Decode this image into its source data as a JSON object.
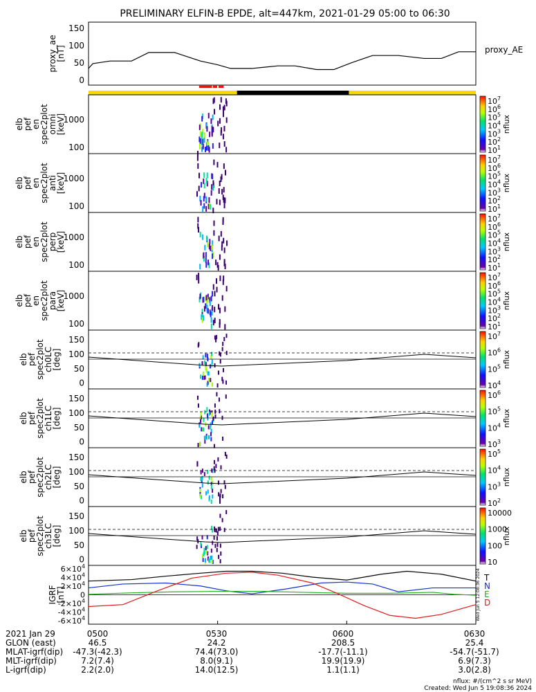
{
  "title": "PRELIMINARY ELFIN-B EPDE, alt=447km, 2021-01-29 05:00 to 06:30",
  "colors": {
    "sci_zone": "#e01818",
    "orbit_sun": "#f5d800",
    "orbit_eclipse": "#000000",
    "T": "#000000",
    "N": "#1030d0",
    "E": "#20b020",
    "D": "#e01818"
  },
  "chart_data": [
    {
      "type": "line",
      "panel": "proxy_ae",
      "ylabel": [
        "proxy_ae",
        "[nT]"
      ],
      "yticks": [
        "150",
        "100",
        "50",
        "0"
      ],
      "ylim": [
        0,
        150
      ],
      "legend": "proxy_AE",
      "x_min": [
        0,
        1,
        5,
        10,
        14,
        20,
        26,
        30,
        33,
        38,
        44,
        48,
        53,
        57,
        61,
        66,
        72,
        78,
        82,
        86,
        90
      ],
      "values": [
        35,
        48,
        55,
        55,
        78,
        78,
        55,
        45,
        35,
        35,
        42,
        42,
        32,
        32,
        50,
        70,
        70,
        62,
        62,
        80,
        80
      ]
    },
    {
      "type": "bar",
      "panel": "orbit_bar",
      "segments": [
        {
          "from": 0,
          "to": 34.5,
          "state": "sun"
        },
        {
          "from": 34.5,
          "to": 60.5,
          "state": "eclipse"
        },
        {
          "from": 60.5,
          "to": 90,
          "state": "sun"
        }
      ],
      "science_zones": [
        [
          25.7,
          28.7
        ],
        [
          28.9,
          29.9
        ],
        [
          30.2,
          31.4
        ]
      ]
    },
    {
      "type": "heatmap",
      "panel": "omni",
      "ylabel": [
        "elb",
        "pef",
        "en",
        "spec2plot",
        "omni",
        "[keV]"
      ],
      "yticks": [
        "1000",
        "100"
      ],
      "zlabel": "nflux",
      "zticks": [
        "10^7",
        "10^6",
        "10^5",
        "10^4",
        "10^3",
        "10^2",
        "10^1"
      ]
    },
    {
      "type": "heatmap",
      "panel": "anti",
      "ylabel": [
        "elb",
        "pef",
        "en",
        "spec2plot",
        "anti",
        "[keV]"
      ],
      "yticks": [
        "1000",
        "100"
      ],
      "zlabel": "nflux",
      "zticks": [
        "10^7",
        "10^6",
        "10^5",
        "10^4",
        "10^3",
        "10^2",
        "10^1"
      ]
    },
    {
      "type": "heatmap",
      "panel": "perp",
      "ylabel": [
        "elb",
        "pef",
        "en",
        "spec2plot",
        "perp",
        "[keV]"
      ],
      "yticks": [
        "1000",
        "100"
      ],
      "zlabel": "nflux",
      "zticks": [
        "10^7",
        "10^6",
        "10^5",
        "10^4",
        "10^3",
        "10^2",
        "10^1"
      ]
    },
    {
      "type": "heatmap",
      "panel": "para",
      "ylabel": [
        "elb",
        "pef",
        "en",
        "spec2plot",
        "para",
        "[keV]"
      ],
      "yticks": [
        "1000",
        "100"
      ],
      "zlabel": "nflux",
      "zticks": [
        "10^7",
        "10^6",
        "10^5",
        "10^4",
        "10^3",
        "10^2",
        "10^1"
      ]
    },
    {
      "type": "heatmap",
      "panel": "ch0LC",
      "ylabel": [
        "elb",
        "pef",
        "spec2plot",
        "ch0LC",
        "[deg]"
      ],
      "yticks": [
        "150",
        "100",
        "50",
        "0"
      ],
      "ylim": [
        0,
        180
      ],
      "zlabel": "nflux",
      "zticks": [
        "10^7",
        "10^6",
        "10^5",
        "10^4"
      ]
    },
    {
      "type": "heatmap",
      "panel": "ch1LC",
      "ylabel": [
        "elb",
        "pef",
        "spec2plot",
        "ch1LC",
        "[deg]"
      ],
      "yticks": [
        "150",
        "100",
        "50",
        "0"
      ],
      "ylim": [
        0,
        180
      ],
      "zlabel": "nflux",
      "zticks": [
        "10^6",
        "10^5",
        "10^4",
        "10^3"
      ]
    },
    {
      "type": "heatmap",
      "panel": "ch2LC",
      "ylabel": [
        "elb",
        "pef",
        "spec2plot",
        "ch2LC",
        "[deg]"
      ],
      "yticks": [
        "150",
        "100",
        "50",
        "0"
      ],
      "ylim": [
        0,
        180
      ],
      "zlabel": "nflux",
      "zticks": [
        "10^5",
        "10^4",
        "10^3",
        "10^2"
      ]
    },
    {
      "type": "heatmap",
      "panel": "ch3LC",
      "ylabel": [
        "elb",
        "pef",
        "spec2plot",
        "ch3LC",
        "[deg]"
      ],
      "yticks": [
        "150",
        "100",
        "50",
        "0"
      ],
      "ylim": [
        0,
        180
      ],
      "zlabel": "nflux",
      "zticks": [
        "10000",
        "1000",
        "100",
        "10"
      ]
    },
    {
      "type": "line",
      "panel": "IGRF",
      "ylabel": [
        "IGRF",
        "[nT]"
      ],
      "yticks": [
        "6×10^4",
        "4×10^4",
        "2×10^4",
        "0",
        "-2×10^4",
        "-4×10^4",
        "-6×10^4"
      ],
      "ylim": [
        -60000,
        60000
      ],
      "series": [
        {
          "name": "T",
          "x_min": [
            0,
            10,
            18,
            26,
            32,
            38,
            45,
            52,
            60,
            68,
            74,
            82,
            90
          ],
          "values": [
            28000,
            31000,
            38000,
            44000,
            48000,
            48000,
            44000,
            36000,
            30000,
            42000,
            48000,
            42000,
            28000
          ]
        },
        {
          "name": "N",
          "x_min": [
            0,
            8,
            18,
            26,
            32,
            38,
            46,
            54,
            60,
            66,
            72,
            80,
            90
          ],
          "values": [
            14000,
            22000,
            24000,
            18000,
            8000,
            2000,
            12000,
            24000,
            26000,
            22000,
            6000,
            14000,
            14000
          ]
        },
        {
          "name": "E",
          "x_min": [
            0,
            10,
            20,
            30,
            40,
            50,
            60,
            70,
            80,
            85,
            90
          ],
          "values": [
            1000,
            4000,
            6000,
            7000,
            7000,
            5000,
            3000,
            3000,
            5000,
            1000,
            -1000
          ]
        },
        {
          "name": "D",
          "x_min": [
            0,
            8,
            16,
            24,
            32,
            38,
            44,
            52,
            58,
            64,
            70,
            76,
            82,
            90
          ],
          "values": [
            -24000,
            -20000,
            8000,
            34000,
            44000,
            46000,
            40000,
            24000,
            2000,
            -22000,
            -42000,
            -48000,
            -40000,
            -20000
          ]
        }
      ]
    }
  ],
  "time_axis": {
    "date": "2021 Jan 29",
    "ticks": [
      "0500",
      "0530",
      "0600",
      "0630"
    ],
    "rows": [
      {
        "label": "GLON (east)",
        "values": [
          "46.5",
          "24.2",
          "208.5",
          "25.4"
        ]
      },
      {
        "label": "MLAT-igrf(dip)",
        "values": [
          "-47.3(-42.3)",
          "74.4(73.0)",
          "-17.7(-11.1)",
          "-54.7(-51.7)"
        ]
      },
      {
        "label": "MLT-igrf(dip)",
        "values": [
          "7.2(7.4)",
          "8.0(9.1)",
          "19.9(19.9)",
          "6.9(7.3)"
        ]
      },
      {
        "label": "L-igrf(dip)",
        "values": [
          "2.2(2.0)",
          "14.0(12.5)",
          "1.1(1.1)",
          "3.0(2.8)"
        ]
      }
    ]
  },
  "footer": {
    "units": "nflux: #/(cm^2 s sr MeV)",
    "created": "Created: Wed Jun  5 19:08:36 2024",
    "stamp": "Wed Jun  5 12:08:36 2024"
  }
}
